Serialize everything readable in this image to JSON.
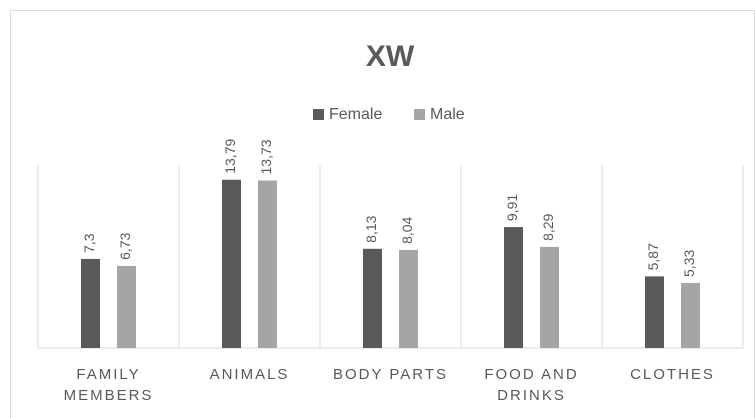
{
  "chart_data": {
    "type": "bar",
    "title": "XW",
    "categories": [
      "FAMILY MEMBERS",
      "ANIMALS",
      "BODY PARTS",
      "FOOD AND DRINKS",
      "CLOTHES"
    ],
    "series": [
      {
        "name": "Female",
        "color": "#595959",
        "values": [
          7.3,
          13.79,
          8.13,
          9.91,
          5.87
        ],
        "value_labels": [
          "7,3",
          "13,79",
          "8,13",
          "9,91",
          "5,87"
        ]
      },
      {
        "name": "Male",
        "color": "#a5a5a5",
        "values": [
          6.73,
          13.73,
          8.04,
          8.29,
          5.33
        ],
        "value_labels": [
          "6,73",
          "13,73",
          "8,04",
          "8,29",
          "5,33"
        ]
      }
    ],
    "ylim": [
      0,
      15
    ],
    "legend": "top"
  }
}
